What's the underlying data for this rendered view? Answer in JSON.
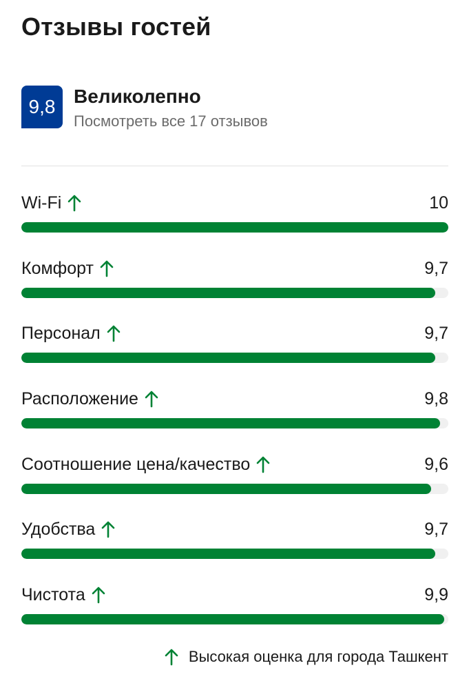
{
  "page": {
    "title": "Отзывы гостей"
  },
  "summary": {
    "score": "9,8",
    "verdict": "Великолепно",
    "reviews_link": "Посмотреть все 17 отзывов"
  },
  "colors": {
    "badge": "#003b95",
    "bar_fill": "#008234",
    "bar_track": "#f0f0f0",
    "high_score_icon": "#008234"
  },
  "scale_max": 10,
  "categories": [
    {
      "label": "Wi-Fi",
      "value": "10",
      "score": 10,
      "icon": "arrow-up-icon"
    },
    {
      "label": "Комфорт",
      "value": "9,7",
      "score": 9.7,
      "icon": "arrow-up-icon"
    },
    {
      "label": "Персонал",
      "value": "9,7",
      "score": 9.7,
      "icon": "arrow-up-icon"
    },
    {
      "label": "Расположение",
      "value": "9,8",
      "score": 9.8,
      "icon": "arrow-up-icon"
    },
    {
      "label": "Соотношение цена/качество",
      "value": "9,6",
      "score": 9.6,
      "icon": "arrow-up-icon"
    },
    {
      "label": "Удобства",
      "value": "9,7",
      "score": 9.7,
      "icon": "arrow-up-icon"
    },
    {
      "label": "Чистота",
      "value": "9,9",
      "score": 9.9,
      "icon": "arrow-up-icon"
    }
  ],
  "footnote": {
    "text": "Высокая оценка для города Ташкент",
    "icon": "arrow-up-icon"
  }
}
